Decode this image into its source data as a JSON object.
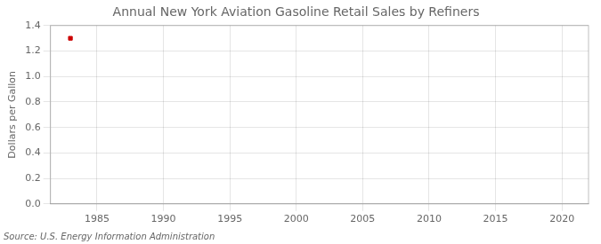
{
  "chart_data": {
    "type": "scatter",
    "title": "Annual New York Aviation Gasoline Retail Sales by Refiners",
    "y_label": "Dollars per Gallon",
    "annotations": [
      "Source: U.S. Energy Information Administration"
    ],
    "x": [
      1983
    ],
    "values": [
      1.3
    ],
    "color": "#cc0000",
    "marker": "square",
    "xlim": [
      1981.5,
      2022
    ],
    "xticks": [
      1985,
      1990,
      1995,
      2000,
      2005,
      2010,
      2015,
      2020
    ],
    "ylim": [
      0,
      1.4
    ],
    "yticks": [
      {
        "value": 0,
        "label": "0.0"
      },
      0.2,
      0.4,
      0.6,
      0.8,
      {
        "value": 1,
        "label": "1.0"
      },
      1.2,
      1.4
    ],
    "grid": true
  }
}
